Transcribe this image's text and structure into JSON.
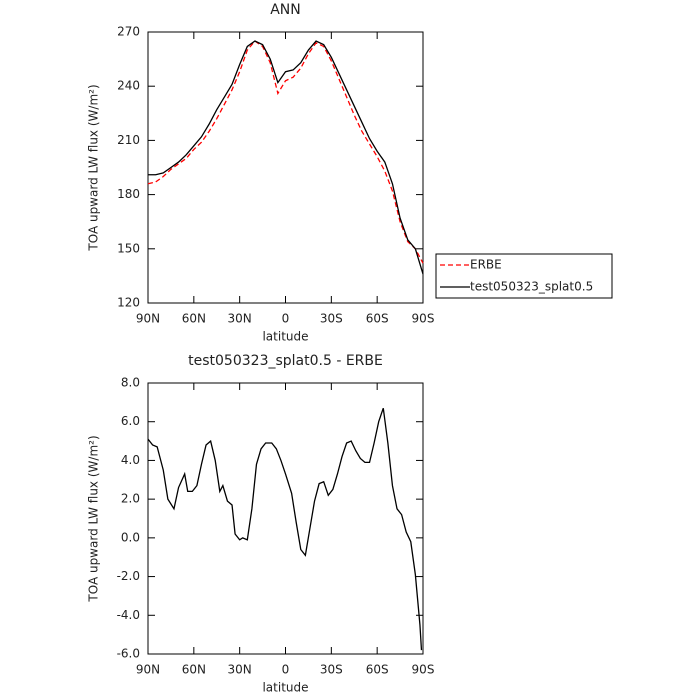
{
  "chart_data": [
    {
      "type": "line",
      "title": "ANN",
      "xlabel": "latitude",
      "ylabel": "TOA upward LW flux (W/m²)",
      "x": [
        90,
        85,
        80,
        75,
        70,
        65,
        60,
        55,
        50,
        45,
        40,
        35,
        30,
        25,
        20,
        15,
        10,
        5,
        0,
        -5,
        -10,
        -15,
        -20,
        -25,
        -30,
        -35,
        -40,
        -45,
        -50,
        -55,
        -60,
        -65,
        -70,
        -75,
        -80,
        -85,
        -90
      ],
      "series": [
        {
          "name": "ERBE",
          "color": "#ff0000",
          "linestyle": "dashed",
          "values": [
            186,
            187,
            190,
            194,
            197,
            200,
            205,
            209,
            215,
            222,
            230,
            238,
            248,
            260,
            265,
            262,
            253,
            236,
            243,
            245,
            250,
            258,
            264,
            262,
            254,
            244,
            234,
            224,
            215,
            208,
            201,
            193,
            182,
            165,
            154,
            150,
            142
          ]
        },
        {
          "name": "test050323_splat0.5",
          "color": "#000000",
          "linestyle": "solid",
          "values": [
            191,
            191,
            192,
            195,
            198,
            202,
            207,
            212,
            219,
            227,
            234,
            241,
            252,
            262,
            265,
            263,
            255,
            242,
            248,
            249,
            253,
            260,
            265,
            263,
            256,
            247,
            238,
            229,
            220,
            211,
            204,
            198,
            186,
            167,
            155,
            150,
            136
          ]
        }
      ],
      "xlim": [
        90,
        -90
      ],
      "xticks": [
        {
          "value": 90,
          "label": "90N"
        },
        {
          "value": 60,
          "label": "60N"
        },
        {
          "value": 30,
          "label": "30N"
        },
        0,
        {
          "value": -30,
          "label": "30S"
        },
        {
          "value": -60,
          "label": "60S"
        },
        {
          "value": -90,
          "label": "90S"
        }
      ],
      "ylim": [
        120,
        270
      ],
      "yticks": [
        120,
        150,
        180,
        210,
        240,
        270
      ],
      "legend": "right"
    },
    {
      "type": "line",
      "title": "test050323_splat0.5 - ERBE",
      "xlabel": "latitude",
      "ylabel": "TOA upward LW flux (W/m²)",
      "x": [
        90,
        87,
        84,
        80,
        77,
        73,
        70,
        66,
        64,
        61,
        58,
        55,
        52,
        49,
        46,
        43,
        41,
        38,
        35,
        33,
        30,
        28,
        25,
        22,
        19,
        16,
        13,
        9,
        6,
        3,
        0,
        -4,
        -7,
        -10,
        -13,
        -16,
        -19,
        -22,
        -25,
        -28,
        -31,
        -34,
        -37,
        -40,
        -43,
        -46,
        -49,
        -52,
        -55,
        -58,
        -61,
        -64,
        -67,
        -70,
        -73,
        -76,
        -79,
        -82,
        -85,
        -88,
        -89
      ],
      "series": [
        {
          "color": "#000000",
          "linestyle": "solid",
          "values": [
            5.1,
            4.8,
            4.7,
            3.5,
            2.0,
            1.5,
            2.6,
            3.3,
            2.4,
            2.4,
            2.7,
            3.8,
            4.8,
            5.0,
            4.0,
            2.4,
            2.7,
            1.9,
            1.7,
            0.2,
            -0.1,
            0.0,
            -0.1,
            1.5,
            3.8,
            4.6,
            4.9,
            4.9,
            4.6,
            4.0,
            3.3,
            2.3,
            0.8,
            -0.6,
            -0.9,
            0.5,
            1.9,
            2.8,
            2.9,
            2.2,
            2.5,
            3.3,
            4.2,
            4.9,
            5.0,
            4.5,
            4.1,
            3.9,
            3.9,
            4.9,
            6.0,
            6.7,
            4.9,
            2.7,
            1.5,
            1.2,
            0.3,
            -0.2,
            -1.9,
            -4.5,
            -5.8
          ]
        }
      ],
      "xlim": [
        90,
        -90
      ],
      "xticks": [
        {
          "value": 90,
          "label": "90N"
        },
        {
          "value": 60,
          "label": "60N"
        },
        {
          "value": 30,
          "label": "30N"
        },
        0,
        {
          "value": -30,
          "label": "30S"
        },
        {
          "value": -60,
          "label": "60S"
        },
        {
          "value": -90,
          "label": "90S"
        }
      ],
      "ylim": [
        -6,
        8
      ],
      "yticks": [
        {
          "value": -6,
          "label": "-6.0"
        },
        {
          "value": -4,
          "label": "-4.0"
        },
        {
          "value": -2,
          "label": "-2.0"
        },
        {
          "value": 0,
          "label": "0.0"
        },
        {
          "value": 2,
          "label": "2.0"
        },
        {
          "value": 4,
          "label": "4.0"
        },
        {
          "value": 6,
          "label": "6.0"
        },
        {
          "value": 8,
          "label": "8.0"
        }
      ]
    }
  ]
}
